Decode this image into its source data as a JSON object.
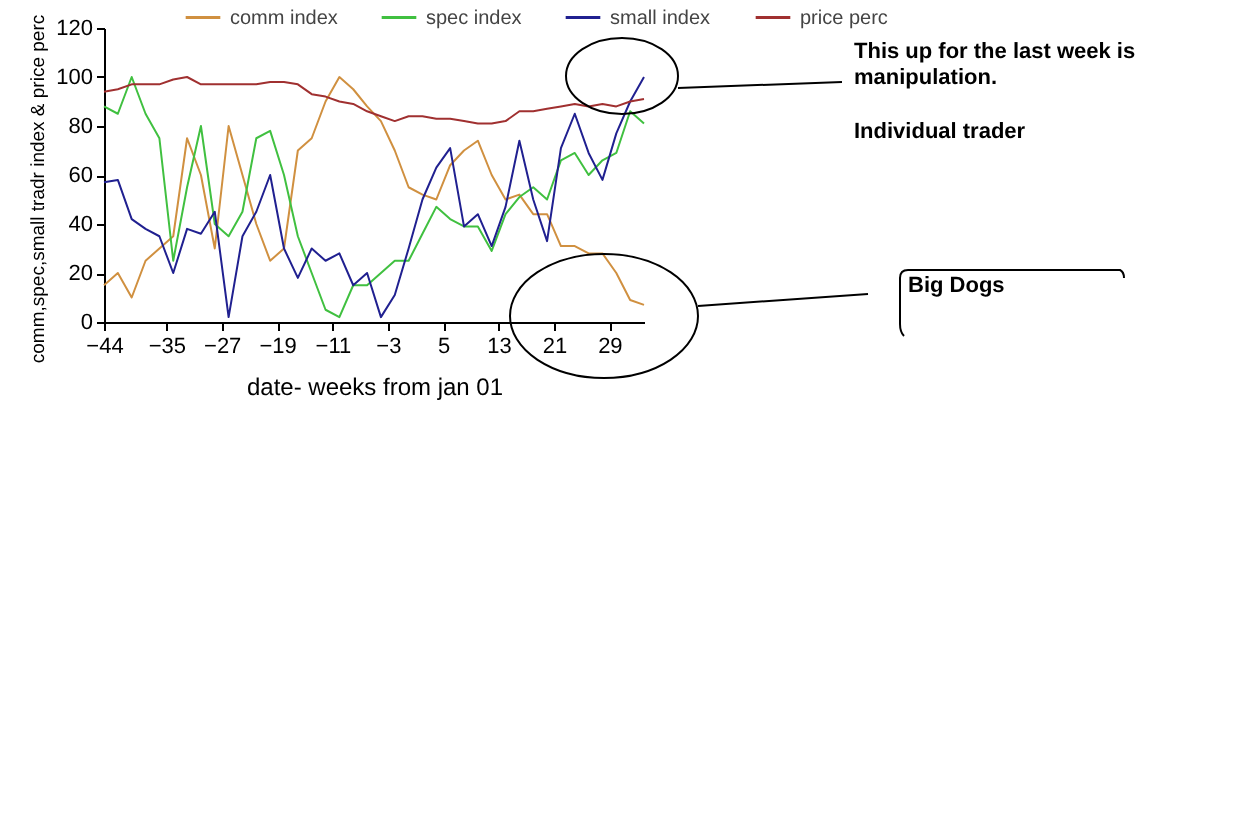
{
  "chart_data": {
    "type": "line",
    "xlabel": "date- weeks from jan 01",
    "ylabel": "comm,spec,small tradr index & price perc",
    "x": [
      -44,
      -42,
      -40,
      -38,
      -36,
      -34,
      -32,
      -30,
      -28,
      -26,
      -24,
      -22,
      -20,
      -18,
      -16,
      -14,
      -12,
      -10,
      -8,
      -6,
      -4,
      -2,
      0,
      2,
      4,
      6,
      8,
      10,
      12,
      14,
      16,
      18,
      20,
      22,
      24,
      26,
      28,
      30,
      32,
      34
    ],
    "series": [
      {
        "name": "comm index",
        "color": "#d09040",
        "values": [
          15,
          20,
          10,
          25,
          30,
          35,
          75,
          60,
          30,
          80,
          60,
          40,
          25,
          30,
          70,
          75,
          90,
          100,
          95,
          88,
          82,
          70,
          55,
          52,
          50,
          64,
          70,
          74,
          60,
          50,
          52,
          44,
          44,
          31,
          31,
          28,
          28,
          20,
          9,
          7
        ]
      },
      {
        "name": "spec index",
        "color": "#40c040",
        "values": [
          88,
          85,
          100,
          85,
          75,
          25,
          55,
          80,
          40,
          35,
          45,
          75,
          78,
          60,
          35,
          20,
          5,
          2,
          15,
          15,
          20,
          25,
          25,
          36,
          47,
          42,
          39,
          39,
          29,
          44,
          51,
          55,
          50,
          66,
          69,
          60,
          66,
          69,
          86,
          81
        ]
      },
      {
        "name": "small index",
        "color": "#202090",
        "values": [
          57,
          58,
          42,
          38,
          35,
          20,
          38,
          36,
          45,
          2,
          35,
          45,
          60,
          30,
          18,
          30,
          25,
          28,
          15,
          20,
          2,
          11,
          30,
          50,
          63,
          71,
          39,
          44,
          31,
          47,
          74,
          50,
          33,
          71,
          85,
          69,
          58,
          77,
          90,
          100
        ]
      },
      {
        "name": "price perc",
        "color": "#a03030",
        "values": [
          94,
          95,
          97,
          97,
          97,
          99,
          100,
          97,
          97,
          97,
          97,
          97,
          98,
          98,
          97,
          93,
          92,
          90,
          89,
          86,
          84,
          82,
          84,
          84,
          83,
          83,
          82,
          81,
          81,
          82,
          86,
          86,
          87,
          88,
          89,
          88,
          89,
          88,
          90,
          91
        ]
      }
    ],
    "xlim": [
      -44,
      34
    ],
    "xticks": [
      -44,
      -35,
      -27,
      -19,
      -11,
      -3,
      5,
      13,
      21,
      29
    ],
    "ylim": [
      0,
      120
    ],
    "yticks": [
      0,
      20,
      40,
      60,
      80,
      100,
      120
    ],
    "grid": false,
    "legend": "top",
    "marker": "none",
    "line_style": "solid",
    "annotations": [
      "This up for the last week is manipulation.",
      "Individual trader",
      "Big Dogs"
    ]
  }
}
